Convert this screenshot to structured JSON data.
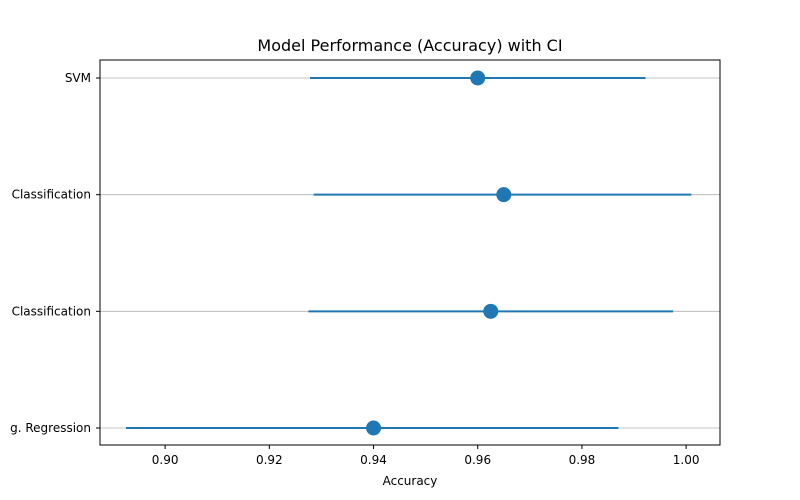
{
  "chart_data": {
    "type": "scatter",
    "title": "Model Performance (Accuracy) with CI",
    "xlabel": "Accuracy",
    "ylabel": "",
    "xlim": [
      0.8875,
      1.0065
    ],
    "x_ticks": [
      "0.90",
      "0.92",
      "0.94",
      "0.96",
      "0.98",
      "1.00"
    ],
    "grid": "horizontal",
    "color": "#1f77b4",
    "series": [
      {
        "points": [
          {
            "label": "Log. Regression",
            "display_label": "g. Regression",
            "value": 0.94,
            "ci_low": 0.8925,
            "ci_high": 0.987
          },
          {
            "label": "Classification",
            "display_label": "Classification",
            "value": 0.9625,
            "ci_low": 0.9275,
            "ci_high": 0.9975
          },
          {
            "label": "Classification",
            "display_label": "Classification",
            "value": 0.965,
            "ci_low": 0.9285,
            "ci_high": 1.001
          },
          {
            "label": "SVM",
            "display_label": "SVM",
            "value": 0.96,
            "ci_low": 0.9278,
            "ci_high": 0.9922
          }
        ]
      }
    ]
  }
}
